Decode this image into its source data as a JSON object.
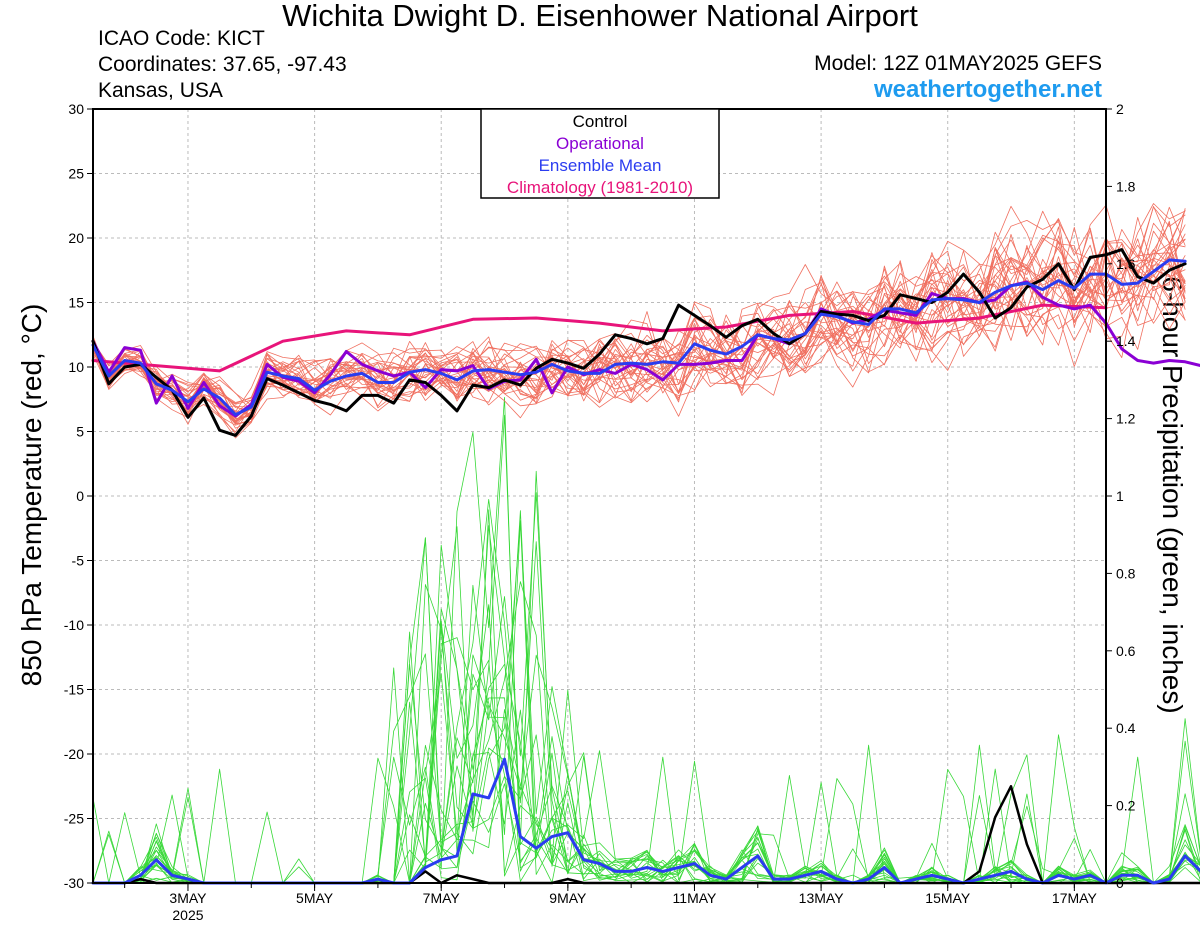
{
  "header": {
    "title": "Wichita Dwight D. Eisenhower National Airport",
    "icao": "ICAO Code: KICT",
    "coordinates": "Coordinates: 37.65, -97.43",
    "location": "Kansas, USA",
    "model": "Model: 12Z 01MAY2025 GEFS",
    "site": "weathertogether.net"
  },
  "chart_data": {
    "type": "line",
    "title": "Wichita Dwight D. Eisenhower National Airport",
    "ylabel_left": "850 hPa Temperature (red, °C)",
    "ylabel_right": "6-hour Precipitation (green, inches)",
    "ylim_left": [
      -30,
      30
    ],
    "ylim_right": [
      0,
      2
    ],
    "yticks_left": [
      "30",
      "25",
      "20",
      "15",
      "10",
      "5",
      "0",
      "-5",
      "-10",
      "-15",
      "-20",
      "-25",
      "-30"
    ],
    "yticks_right": [
      "2",
      "1.8",
      "1.6",
      "1.4",
      "1.2",
      "1",
      "0.8",
      "0.6",
      "0.4",
      "0.2",
      "0"
    ],
    "xlim_days": [
      1.5,
      17.5
    ],
    "x_ticks": [
      {
        "day": 3,
        "label": "3MAY",
        "sub": "2025"
      },
      {
        "day": 5,
        "label": "5MAY",
        "sub": ""
      },
      {
        "day": 7,
        "label": "7MAY",
        "sub": ""
      },
      {
        "day": 9,
        "label": "9MAY",
        "sub": ""
      },
      {
        "day": 11,
        "label": "11MAY",
        "sub": ""
      },
      {
        "day": 13,
        "label": "13MAY",
        "sub": ""
      },
      {
        "day": 15,
        "label": "15MAY",
        "sub": ""
      },
      {
        "day": 17,
        "label": "17MAY",
        "sub": ""
      }
    ],
    "legend": {
      "placement": "top-center",
      "entries": [
        {
          "label": "Control",
          "color": "#000000"
        },
        {
          "label": "Operational",
          "color": "#8a00d4"
        },
        {
          "label": "Ensemble Mean",
          "color": "#2a3cf0"
        },
        {
          "label": "Climatology (1981-2010)",
          "color": "#e8147a"
        }
      ]
    },
    "colors": {
      "member_temp": "#f07060",
      "member_precip": "#38d838",
      "control": "#000000",
      "operational": "#8a00d4",
      "mean": "#2a3cf0",
      "climatology": "#e8147a"
    },
    "temp_series": {
      "x_start_day": 1.5,
      "x_step_day": 0.25,
      "control": [
        12,
        8.7,
        10,
        10.2,
        9.2,
        8.2,
        6.1,
        7.6,
        5.1,
        4.7,
        6.2,
        9.1,
        8.6,
        8,
        7.4,
        7.1,
        6.6,
        7.8,
        7.8,
        7.2,
        9,
        8.8,
        7.8,
        6.6,
        8.6,
        8.4,
        9,
        8.6,
        9.9,
        10.6,
        10.3,
        9.9,
        11,
        12.5,
        12.2,
        11.8,
        12.2,
        14.8,
        14,
        13.2,
        12.3,
        13.2,
        13.7,
        12.6,
        11.8,
        12.6,
        14.3,
        14.1,
        14,
        13.6,
        14,
        15.6,
        15.3,
        15,
        15.8,
        17.2,
        15.8,
        13.8,
        14.6,
        16.2,
        16.8,
        18,
        16,
        18.5,
        18.7,
        19.1,
        17,
        16.5,
        17.5,
        18
      ],
      "operational": [
        12,
        9.6,
        11.5,
        11.3,
        7.2,
        9.3,
        6.8,
        8.8,
        7,
        6.2,
        7.1,
        10.2,
        9.2,
        8.9,
        8,
        9.4,
        11.2,
        10.2,
        9.7,
        9.3,
        9.6,
        8.4,
        9.8,
        9.7,
        10.1,
        8.3,
        8.9,
        9,
        10.6,
        8,
        10,
        9.4,
        9.8,
        9.5,
        10.2,
        9.8,
        9,
        10.2,
        10.2,
        10.3,
        10.5,
        10.5,
        12.5,
        12.2,
        11.8,
        12.6,
        14.5,
        14,
        13.4,
        13.7,
        14.4,
        14.2,
        14,
        15.7,
        15.3,
        15.3,
        15,
        15.2,
        16.3,
        16.6,
        15.4,
        14.8,
        14.5,
        14.8,
        13.4,
        11.4,
        10.5,
        10.3,
        10.5,
        10.4,
        10.1,
        10.5,
        10.3
      ],
      "mean": [
        11.7,
        9.3,
        10.5,
        10.3,
        8.7,
        8.2,
        7.3,
        8.3,
        7.6,
        6.3,
        6.9,
        9.6,
        9.3,
        9.1,
        8.2,
        8.9,
        9.3,
        9.5,
        8.8,
        8.8,
        9.6,
        9.8,
        9.5,
        9,
        9.7,
        9.8,
        9.6,
        9.4,
        9.6,
        10.2,
        9.7,
        9.5,
        9.5,
        10.2,
        10.3,
        10.2,
        10.4,
        10.3,
        11.8,
        11.3,
        11,
        11.6,
        12.5,
        12.2,
        12.1,
        12.6,
        14.1,
        13.9,
        13.5,
        13.3,
        14.5,
        14.5,
        14.2,
        15.2,
        15.3,
        15.2,
        15,
        15.8,
        16.3,
        16.5,
        16,
        16.7,
        16.1,
        17.2,
        17.2,
        16.4,
        16.5,
        17.4,
        18.3,
        18.2
      ],
      "climatology_days": [
        1.5,
        3.5,
        4.5,
        5.5,
        6.5,
        7.5,
        8.5,
        9.5,
        10.5,
        11.5,
        12.5,
        13.5,
        14.5,
        15.5,
        16.5,
        17.5
      ],
      "climatology": [
        10.5,
        9.7,
        12,
        12.8,
        12.5,
        13.7,
        13.8,
        13.4,
        12.8,
        13.1,
        14,
        14.3,
        13.4,
        13.8,
        14.8,
        14.6
      ]
    },
    "precip_series": {
      "x_start_day": 1.5,
      "x_step_day": 0.25,
      "control": [
        0,
        0,
        0,
        0.01,
        0,
        0,
        0,
        0,
        0,
        0,
        0,
        0,
        0,
        0,
        0,
        0,
        0,
        0,
        0,
        0,
        0,
        0.03,
        0,
        0.02,
        0.01,
        0,
        0,
        0,
        0,
        0,
        0.01,
        0,
        0,
        0,
        0,
        0,
        0,
        0,
        0,
        0,
        0,
        0,
        0,
        0,
        0,
        0,
        0,
        0,
        0,
        0,
        0,
        0,
        0,
        0,
        0,
        0,
        0.03,
        0.17,
        0.25,
        0.1,
        0,
        0,
        0,
        0,
        0,
        0,
        0,
        0,
        0,
        0,
        0,
        0,
        0
      ],
      "mean": [
        0,
        0,
        0,
        0.02,
        0.06,
        0.02,
        0.01,
        0,
        0,
        0,
        0,
        0,
        0,
        0,
        0,
        0,
        0,
        0,
        0.01,
        0,
        0,
        0.04,
        0.06,
        0.07,
        0.23,
        0.22,
        0.32,
        0.12,
        0.09,
        0.12,
        0.13,
        0.06,
        0.05,
        0.03,
        0.03,
        0.04,
        0.03,
        0.04,
        0.05,
        0.02,
        0.01,
        0.04,
        0.07,
        0.01,
        0.01,
        0.02,
        0.03,
        0.01,
        0,
        0.01,
        0.04,
        0,
        0.01,
        0.02,
        0.01,
        0,
        0.01,
        0.02,
        0.03,
        0.01,
        0,
        0.02,
        0.01,
        0.02,
        0,
        0.02,
        0.02,
        0,
        0.01,
        0.07,
        0.03
      ]
    }
  }
}
